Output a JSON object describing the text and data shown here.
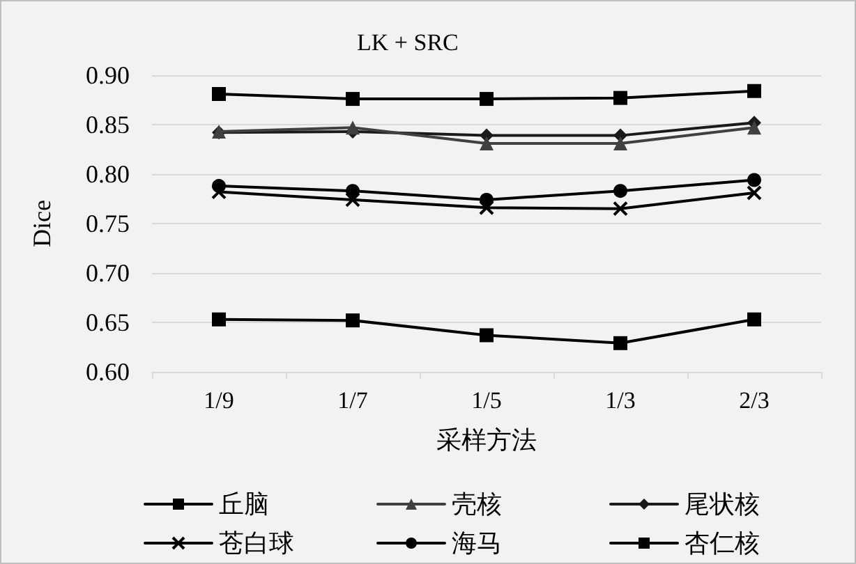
{
  "chart_data": {
    "type": "line",
    "title": "LK + SRC",
    "xlabel": "采样方法",
    "ylabel": "Dice",
    "categories": [
      "1/9",
      "1/7",
      "1/5",
      "1/3",
      "2/3"
    ],
    "series": [
      {
        "name": "丘脑",
        "color": "#000000",
        "marker": "square",
        "values": [
          0.881,
          0.876,
          0.876,
          0.877,
          0.884
        ]
      },
      {
        "name": "壳核",
        "color": "#404040",
        "marker": "triangle",
        "values": [
          0.843,
          0.847,
          0.831,
          0.831,
          0.847
        ]
      },
      {
        "name": "尾状核",
        "color": "#1a1a1a",
        "marker": "diamond",
        "values": [
          0.842,
          0.843,
          0.839,
          0.839,
          0.852
        ]
      },
      {
        "name": "苍白球",
        "color": "#000000",
        "marker": "cross",
        "values": [
          0.782,
          0.774,
          0.766,
          0.765,
          0.781
        ]
      },
      {
        "name": "海马",
        "color": "#000000",
        "marker": "circle",
        "values": [
          0.788,
          0.783,
          0.774,
          0.783,
          0.794
        ]
      },
      {
        "name": "杏仁核",
        "color": "#000000",
        "marker": "square",
        "values": [
          0.653,
          0.652,
          0.637,
          0.629,
          0.653
        ]
      }
    ],
    "ylim": [
      0.6,
      0.9
    ],
    "yticks": [
      {
        "value": 0.6,
        "label": "0.60"
      },
      0.65,
      {
        "value": 0.7,
        "label": "0.70"
      },
      0.75,
      {
        "value": 0.8,
        "label": "0.80"
      },
      0.85,
      {
        "value": 0.9,
        "label": "0.90"
      }
    ],
    "grid": "y",
    "legend": "bottom",
    "line_style": "solid"
  }
}
